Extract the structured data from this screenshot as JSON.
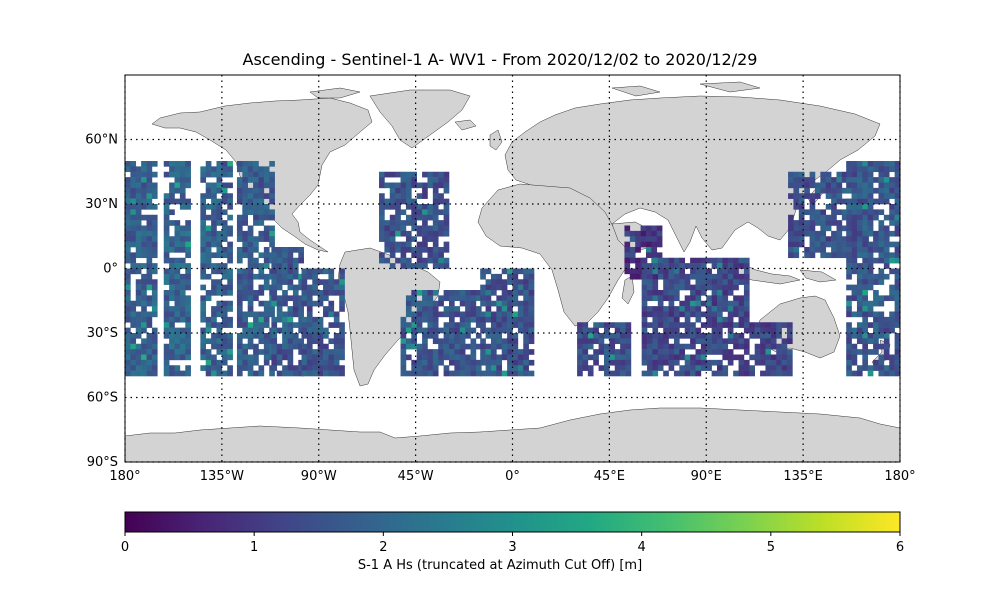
{
  "title": "Ascending - Sentinel-1 A- WV1 - From 2020/12/02 to 2020/12/29",
  "map": {
    "projection": "PlateCarree",
    "lon_range": [
      -180,
      180
    ],
    "lat_range": [
      -90,
      90
    ],
    "land_color": "#d3d3d3",
    "coast_color": "#333333",
    "grid": "dotted",
    "lat_ticks": [
      {
        "value": 60,
        "label": "60°N"
      },
      {
        "value": 30,
        "label": "30°N"
      },
      {
        "value": 0,
        "label": "0°"
      },
      {
        "value": -30,
        "label": "30°S"
      },
      {
        "value": -60,
        "label": "60°S"
      },
      {
        "value": -90,
        "label": "90°S"
      }
    ],
    "lon_ticks": [
      {
        "value": -180,
        "label": "180°"
      },
      {
        "value": -135,
        "label": "135°W"
      },
      {
        "value": -90,
        "label": "90°W"
      },
      {
        "value": -45,
        "label": "45°W"
      },
      {
        "value": 0,
        "label": "0°"
      },
      {
        "value": 45,
        "label": "45°E"
      },
      {
        "value": 90,
        "label": "90°E"
      },
      {
        "value": 135,
        "label": "135°E"
      },
      {
        "value": 180,
        "label": "180°"
      }
    ]
  },
  "chart_data": {
    "type": "heatmap",
    "variable": "S-1 A Hs (truncated at Azimuth Cut Off) [m]",
    "colormap": "viridis",
    "vmin": 0,
    "vmax": 6,
    "lat_coverage": [
      -50,
      50
    ],
    "swaths": [
      {
        "lon_start": -180,
        "lon_end": -165,
        "lat_start": 50,
        "lat_end": -50,
        "hs_mean": 1.8
      },
      {
        "lon_start": -162,
        "lon_end": -150,
        "lat_start": 50,
        "lat_end": -50,
        "hs_mean": 1.9
      },
      {
        "lon_start": -145,
        "lon_end": -130,
        "lat_start": 50,
        "lat_end": -50,
        "hs_mean": 1.8
      },
      {
        "lon_start": -128,
        "lon_end": -112,
        "lat_start": 50,
        "lat_end": -50,
        "hs_mean": 1.7
      },
      {
        "lon_start": -112,
        "lon_end": -98,
        "lat_start": 10,
        "lat_end": -50,
        "hs_mean": 1.6
      },
      {
        "lon_start": -98,
        "lon_end": -80,
        "lat_start": 0,
        "lat_end": -50,
        "hs_mean": 1.6
      },
      {
        "lon_start": -62,
        "lon_end": -30,
        "lat_start": 45,
        "lat_end": 0,
        "hs_mean": 1.5
      },
      {
        "lon_start": -52,
        "lon_end": -15,
        "lat_start": -10,
        "lat_end": -50,
        "hs_mean": 1.6
      },
      {
        "lon_start": -15,
        "lon_end": 10,
        "lat_start": 0,
        "lat_end": -50,
        "hs_mean": 1.5
      },
      {
        "lon_start": 30,
        "lon_end": 55,
        "lat_start": -25,
        "lat_end": -48,
        "hs_mean": 1.5
      },
      {
        "lon_start": 52,
        "lon_end": 68,
        "lat_start": 20,
        "lat_end": -5,
        "hs_mean": 0.9
      },
      {
        "lon_start": 60,
        "lon_end": 110,
        "lat_start": 5,
        "lat_end": -50,
        "hs_mean": 1.3
      },
      {
        "lon_start": 110,
        "lon_end": 130,
        "lat_start": -25,
        "lat_end": -50,
        "hs_mean": 1.3
      },
      {
        "lon_start": 128,
        "lon_end": 165,
        "lat_start": 45,
        "lat_end": 5,
        "hs_mean": 1.5
      },
      {
        "lon_start": 155,
        "lon_end": 180,
        "lat_start": 50,
        "lat_end": -50,
        "hs_mean": 1.6
      }
    ]
  },
  "colorbar": {
    "ticks": [
      {
        "value": 0,
        "label": "0"
      },
      {
        "value": 1,
        "label": "1"
      },
      {
        "value": 2,
        "label": "2"
      },
      {
        "value": 3,
        "label": "3"
      },
      {
        "value": 4,
        "label": "4"
      },
      {
        "value": 5,
        "label": "5"
      },
      {
        "value": 6,
        "label": "6"
      }
    ],
    "label": "S-1 A Hs (truncated at Azimuth Cut Off) [m]"
  }
}
